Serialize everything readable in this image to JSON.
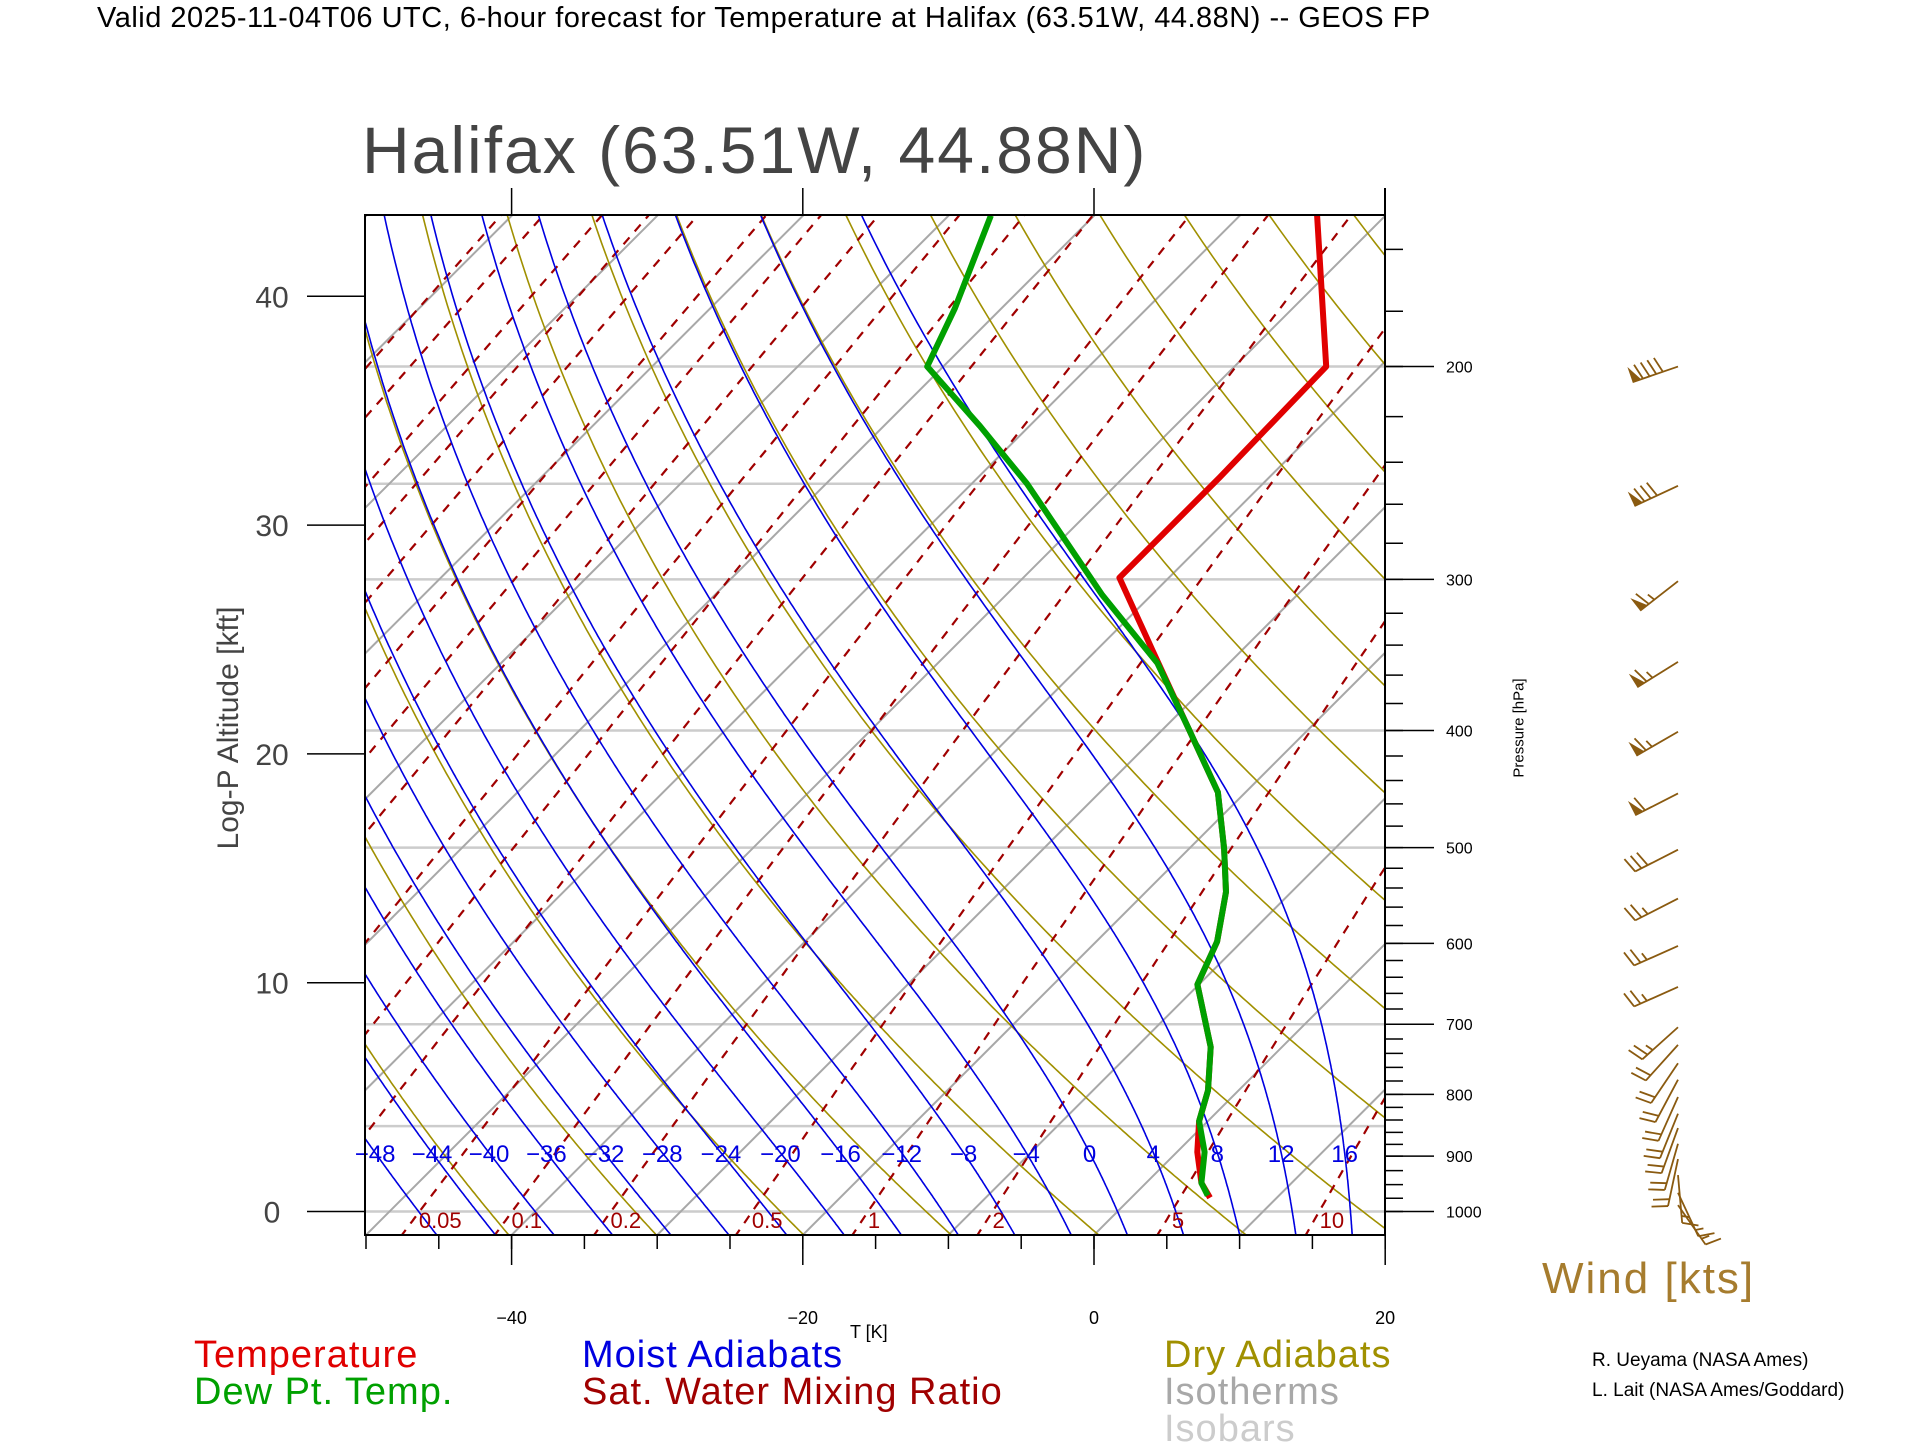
{
  "header": {
    "title": "Valid 2025-11-04T06 UTC, 6-hour forecast for Temperature at Halifax (63.51W, 44.88N) -- GEOS FP"
  },
  "legend": {
    "temperature": "Temperature",
    "dewpoint": "Dew Pt. Temp.",
    "moist_adiabats": "Moist Adiabats",
    "mixing_ratio": "Sat. Water Mixing Ratio",
    "dry_adiabats": "Dry Adiabats",
    "isotherms": "Isotherms",
    "isobars": "Isobars"
  },
  "credits": [
    "R. Ueyama (NASA Ames)",
    "L. Lait (NASA Ames/Goddard)"
  ],
  "colors": {
    "temperature": "#e00000",
    "dewpoint": "#00a000",
    "moist": "#0000e0",
    "mixing": "#a00000",
    "dry": "#a09000",
    "isotherm": "#a8a8a8",
    "isobar": "#cccccc",
    "wind": "#8a5a10"
  },
  "chart_data": {
    "type": "line",
    "subtype": "skew-T log-P",
    "title": "Halifax (63.51W, 44.88N)",
    "xlabel": "T [K]",
    "ylabel": "Log-P Altitude [kft]",
    "y2label": "Pressure [hPa]",
    "wind_label": "Wind [kts]",
    "xlim": [
      -50,
      20
    ],
    "plim": [
      1046,
      150
    ],
    "x_ticks": [
      -40,
      -20,
      0,
      20
    ],
    "x_tick_labels": [
      "−40",
      "−20",
      "0",
      "20"
    ],
    "y_ticks_kft": [
      0,
      10,
      20,
      30,
      40
    ],
    "y_tick_labels": [
      "0",
      "10",
      "20",
      "30",
      "40"
    ],
    "pressure_ticks": [
      1000,
      900,
      800,
      700,
      600,
      500,
      400,
      300,
      200
    ],
    "pressure_tick_labels": [
      "1000",
      "900",
      "800",
      "700",
      "600",
      "500",
      "400",
      "300",
      "200"
    ],
    "isotherms_step_c": 10,
    "isobars_hpa": [
      1000,
      850,
      700,
      500,
      400,
      300,
      250,
      200
    ],
    "dry_adiabats_theta_k": [
      210,
      220,
      230,
      240,
      250,
      260,
      270,
      280,
      290,
      300,
      310,
      320,
      330,
      340,
      350,
      360,
      370,
      380,
      390,
      400
    ],
    "moist_adiabats_thetaw_c": [
      -48,
      -44,
      -40,
      -36,
      -32,
      -28,
      -24,
      -20,
      -16,
      -12,
      -8,
      -4,
      0,
      4,
      8,
      12,
      16
    ],
    "moist_adiabat_labels": [
      "−48",
      "−44",
      "−40",
      "−36",
      "−32",
      "−28",
      "−24",
      "−20",
      "−16",
      "−12",
      "−8",
      "−4",
      "0",
      "4",
      "8",
      "12",
      "16"
    ],
    "mixing_ratio_gkg": [
      0.05,
      0.1,
      0.2,
      0.5,
      1,
      2,
      5,
      10
    ],
    "mixing_ratio_labels": [
      "0.05",
      "0.1",
      "0.2",
      "0.5",
      "1",
      "2",
      "5",
      "10"
    ],
    "mixing_ratio_unlabeled_gkg": [
      1e-05,
      2e-05,
      5e-05,
      0.0001,
      0.0002,
      0.0005,
      0.001,
      0.002,
      0.005,
      0.01,
      0.02,
      20
    ],
    "series": [
      {
        "name": "Temperature",
        "pressure_hpa": [
          974,
          947,
          893,
          842,
          794,
          731,
          649,
          598,
          544,
          501,
          450,
          400,
          343,
          299,
          247,
          200,
          150
        ],
        "values_c": [
          5.4,
          3.8,
          1.4,
          -0.6,
          -2.1,
          -4.9,
          -10.1,
          -11.7,
          -14.5,
          -17.6,
          -21.9,
          -28.1,
          -36.2,
          -43.4,
          -43.4,
          -43.7,
          -54.7
        ]
      },
      {
        "name": "Dew Pt. Temp.",
        "pressure_hpa": [
          970,
          947,
          893,
          842,
          794,
          731,
          649,
          598,
          544,
          501,
          450,
          400,
          352,
          309,
          250,
          224,
          200,
          179,
          150
        ],
        "values_c": [
          5.1,
          3.8,
          1.9,
          -0.6,
          -2.1,
          -4.9,
          -10.1,
          -11.7,
          -14.5,
          -17.6,
          -21.9,
          -28.1,
          -34.9,
          -43.4,
          -56.2,
          -63.4,
          -71.1,
          -73.2,
          -77.1
        ]
      }
    ],
    "winds": [
      {
        "p": 200,
        "dir": 251,
        "kts": 90
      },
      {
        "p": 251,
        "dir": 245,
        "kts": 80
      },
      {
        "p": 301,
        "dir": 232,
        "kts": 65
      },
      {
        "p": 351,
        "dir": 238,
        "kts": 65
      },
      {
        "p": 401,
        "dir": 240,
        "kts": 65
      },
      {
        "p": 451,
        "dir": 243,
        "kts": 60
      },
      {
        "p": 502,
        "dir": 243,
        "kts": 30
      },
      {
        "p": 551,
        "dir": 243,
        "kts": 25
      },
      {
        "p": 603,
        "dir": 246,
        "kts": 25
      },
      {
        "p": 652,
        "dir": 246,
        "kts": 25
      },
      {
        "p": 704,
        "dir": 228,
        "kts": 25
      },
      {
        "p": 728,
        "dir": 222,
        "kts": 20
      },
      {
        "p": 754,
        "dir": 214,
        "kts": 20
      },
      {
        "p": 778,
        "dir": 208,
        "kts": 20
      },
      {
        "p": 804,
        "dir": 204,
        "kts": 20
      },
      {
        "p": 830,
        "dir": 202,
        "kts": 20
      },
      {
        "p": 853,
        "dir": 200,
        "kts": 20
      },
      {
        "p": 879,
        "dir": 196,
        "kts": 20
      },
      {
        "p": 905,
        "dir": 192,
        "kts": 20
      },
      {
        "p": 933,
        "dir": 175,
        "kts": 15
      },
      {
        "p": 965,
        "dir": 155,
        "kts": 15
      },
      {
        "p": 988,
        "dir": 145,
        "kts": 15
      }
    ]
  }
}
